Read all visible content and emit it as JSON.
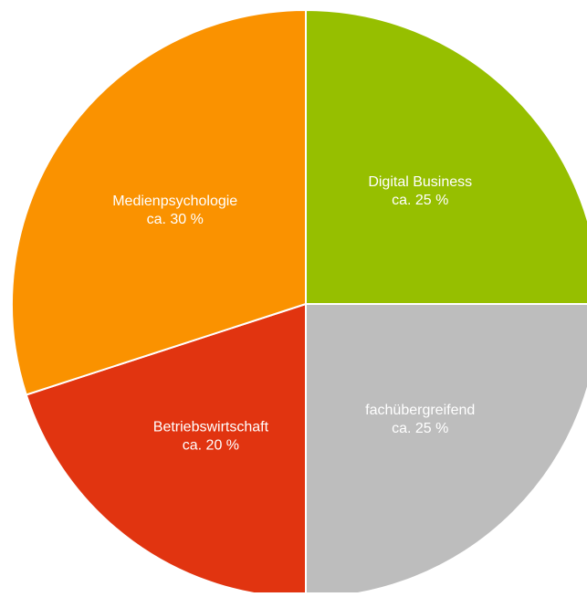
{
  "chart_data": {
    "type": "pie",
    "slices": [
      {
        "label": "Digital Business",
        "value_text": "ca. 25 %",
        "value": 25,
        "color": "#96bf00"
      },
      {
        "label": "fachübergreifend",
        "value_text": "ca. 25 %",
        "value": 25,
        "color": "#bdbdbd"
      },
      {
        "label": "Betriebswirtschaft",
        "value_text": "ca. 20 %",
        "value": 20,
        "color": "#e13410"
      },
      {
        "label": "Medienpsychologie",
        "value_text": "ca. 30 %",
        "value": 30,
        "color": "#fa9200"
      }
    ],
    "start_angle_deg": 0,
    "direction": "clockwise"
  }
}
